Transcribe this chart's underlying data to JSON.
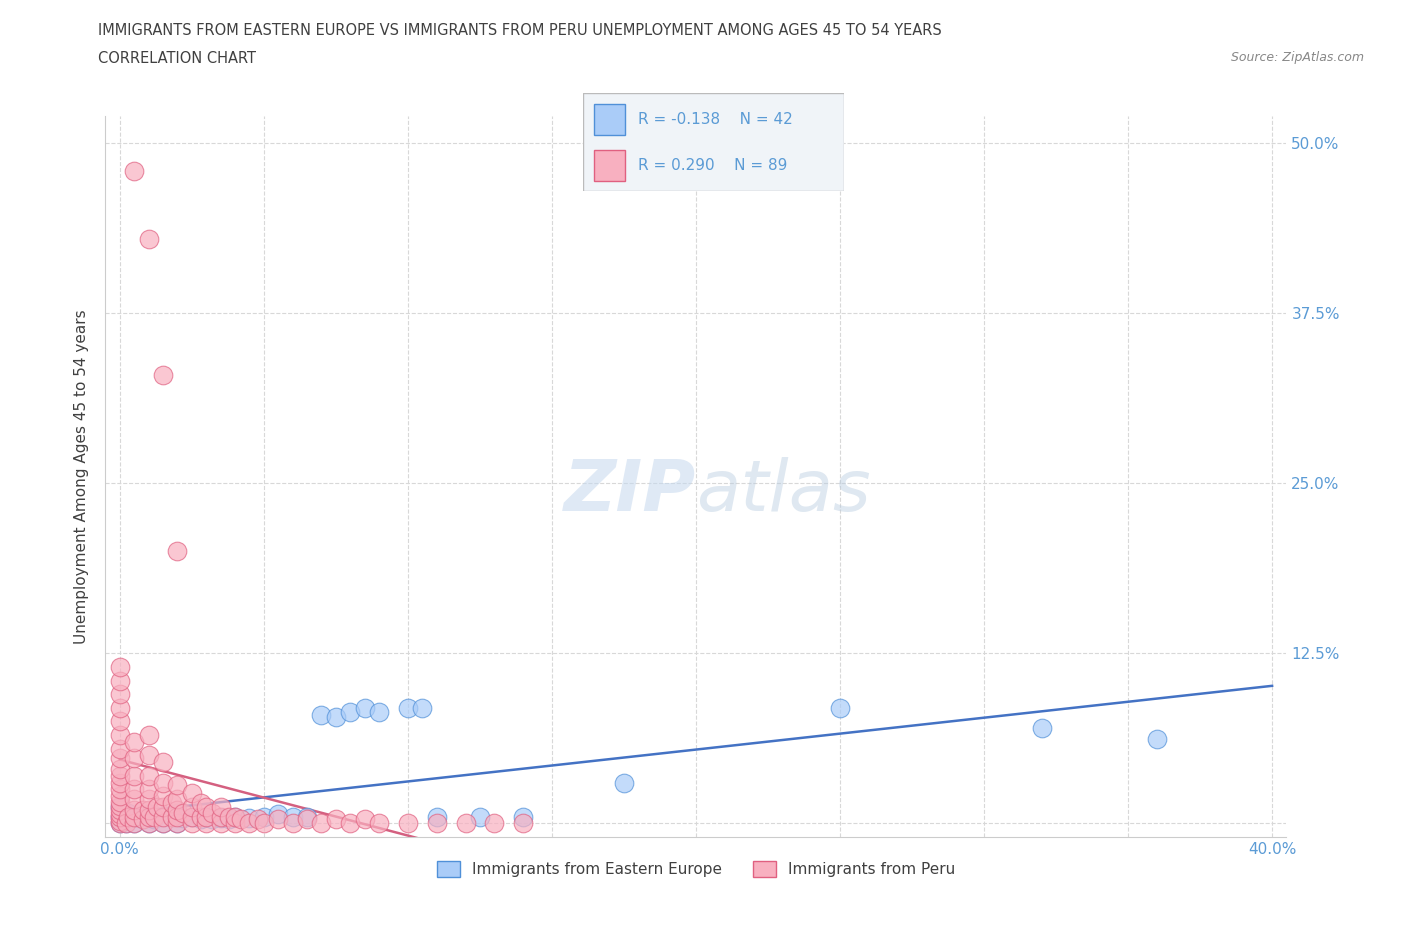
{
  "title_line1": "IMMIGRANTS FROM EASTERN EUROPE VS IMMIGRANTS FROM PERU UNEMPLOYMENT AMONG AGES 45 TO 54 YEARS",
  "title_line2": "CORRELATION CHART",
  "source_text": "Source: ZipAtlas.com",
  "ylabel": "Unemployment Among Ages 45 to 54 years",
  "watermark_text": "ZIPatlas",
  "legend_r1": "R = -0.138",
  "legend_n1": "N = 42",
  "legend_r2": "R = 0.290",
  "legend_n2": "N = 89",
  "color_eastern_face": "#aaccf8",
  "color_eastern_edge": "#5090d8",
  "color_peru_face": "#f8b0c0",
  "color_peru_edge": "#e06080",
  "color_trend_eastern": "#4472c4",
  "color_trend_peru": "#d46080",
  "color_trend_peru_dashed": "#e0a0b0",
  "xtick_color": "#5b9bd5",
  "ytick_color": "#5b9bd5",
  "grid_color": "#d8d8d8",
  "title_color": "#404040",
  "source_color": "#888888",
  "label_color": "#404040",
  "legend_text_color": "#5b9bd5"
}
